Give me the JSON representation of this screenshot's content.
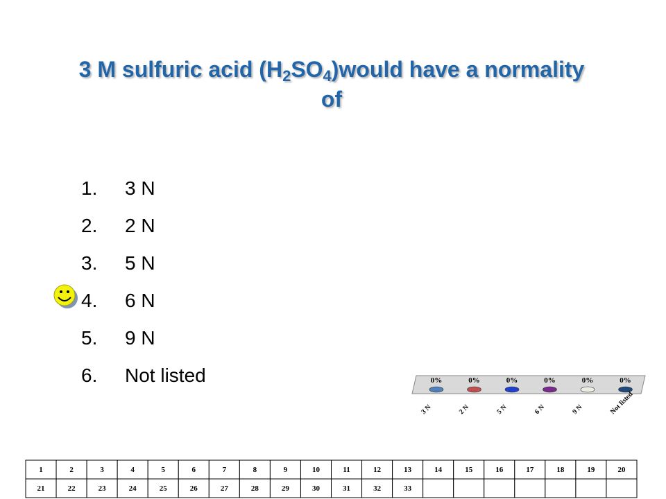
{
  "title_parts": [
    "3 M sulfuric acid (H",
    "2",
    "SO",
    "4",
    ")would have a normality of"
  ],
  "options": [
    {
      "number": "1.",
      "text": "3 N"
    },
    {
      "number": "2.",
      "text": "2 N"
    },
    {
      "number": "3.",
      "text": "5 N"
    },
    {
      "number": "4.",
      "text": "6 N"
    },
    {
      "number": "5.",
      "text": "9 N"
    },
    {
      "number": "6.",
      "text": "Not listed"
    }
  ],
  "chart_data": {
    "type": "bar",
    "categories": [
      "3 N",
      "2 N",
      "5 N",
      "6 N",
      "9 N",
      "Not listed"
    ],
    "values": [
      0,
      0,
      0,
      0,
      0,
      0
    ],
    "value_labels": [
      "0%",
      "0%",
      "0%",
      "0%",
      "0%",
      "0%"
    ],
    "colors": [
      "#4f81bd",
      "#c0504d",
      "#1f3fd0",
      "#7a2a8c",
      "#eeece1",
      "#1f497d"
    ],
    "ylim": [
      0,
      100
    ]
  },
  "table": {
    "rows": [
      [
        1,
        2,
        3,
        4,
        5,
        6,
        7,
        8,
        9,
        10,
        11,
        12,
        13,
        14,
        15,
        16,
        17,
        18,
        19,
        20
      ],
      [
        21,
        22,
        23,
        24,
        25,
        26,
        27,
        28,
        29,
        30,
        31,
        32,
        33
      ]
    ]
  }
}
